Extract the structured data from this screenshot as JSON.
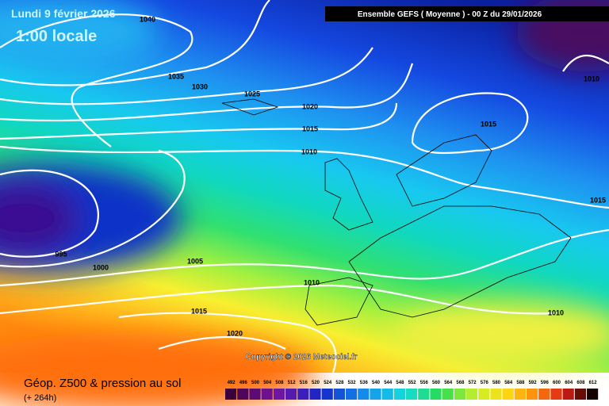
{
  "header": {
    "date": "Lundi 9 février 2026",
    "time": "1:00 locale"
  },
  "run_label": "Ensemble GEFS ( Moyenne )  -  00 Z du 29/01/2026",
  "copyright": "Copyright © 2026 Meteociel.fr",
  "footer": {
    "title": "Géop. Z500 & pression au sol",
    "lead": "(+ 264h)"
  },
  "isobar_labels": [
    "1040",
    "1035",
    "1030",
    "1025",
    "1020",
    "1015",
    "1010",
    "1015",
    "1010",
    "1015",
    "995",
    "1000",
    "1005",
    "1010",
    "1015",
    "1020",
    "1010"
  ],
  "scale": {
    "labels": [
      "492",
      "496",
      "500",
      "504",
      "508",
      "512",
      "516",
      "520",
      "524",
      "528",
      "532",
      "536",
      "540",
      "544",
      "548",
      "552",
      "556",
      "560",
      "564",
      "568",
      "572",
      "576",
      "580",
      "584",
      "588",
      "592",
      "596",
      "600",
      "604",
      "608",
      "612"
    ]
  }
}
